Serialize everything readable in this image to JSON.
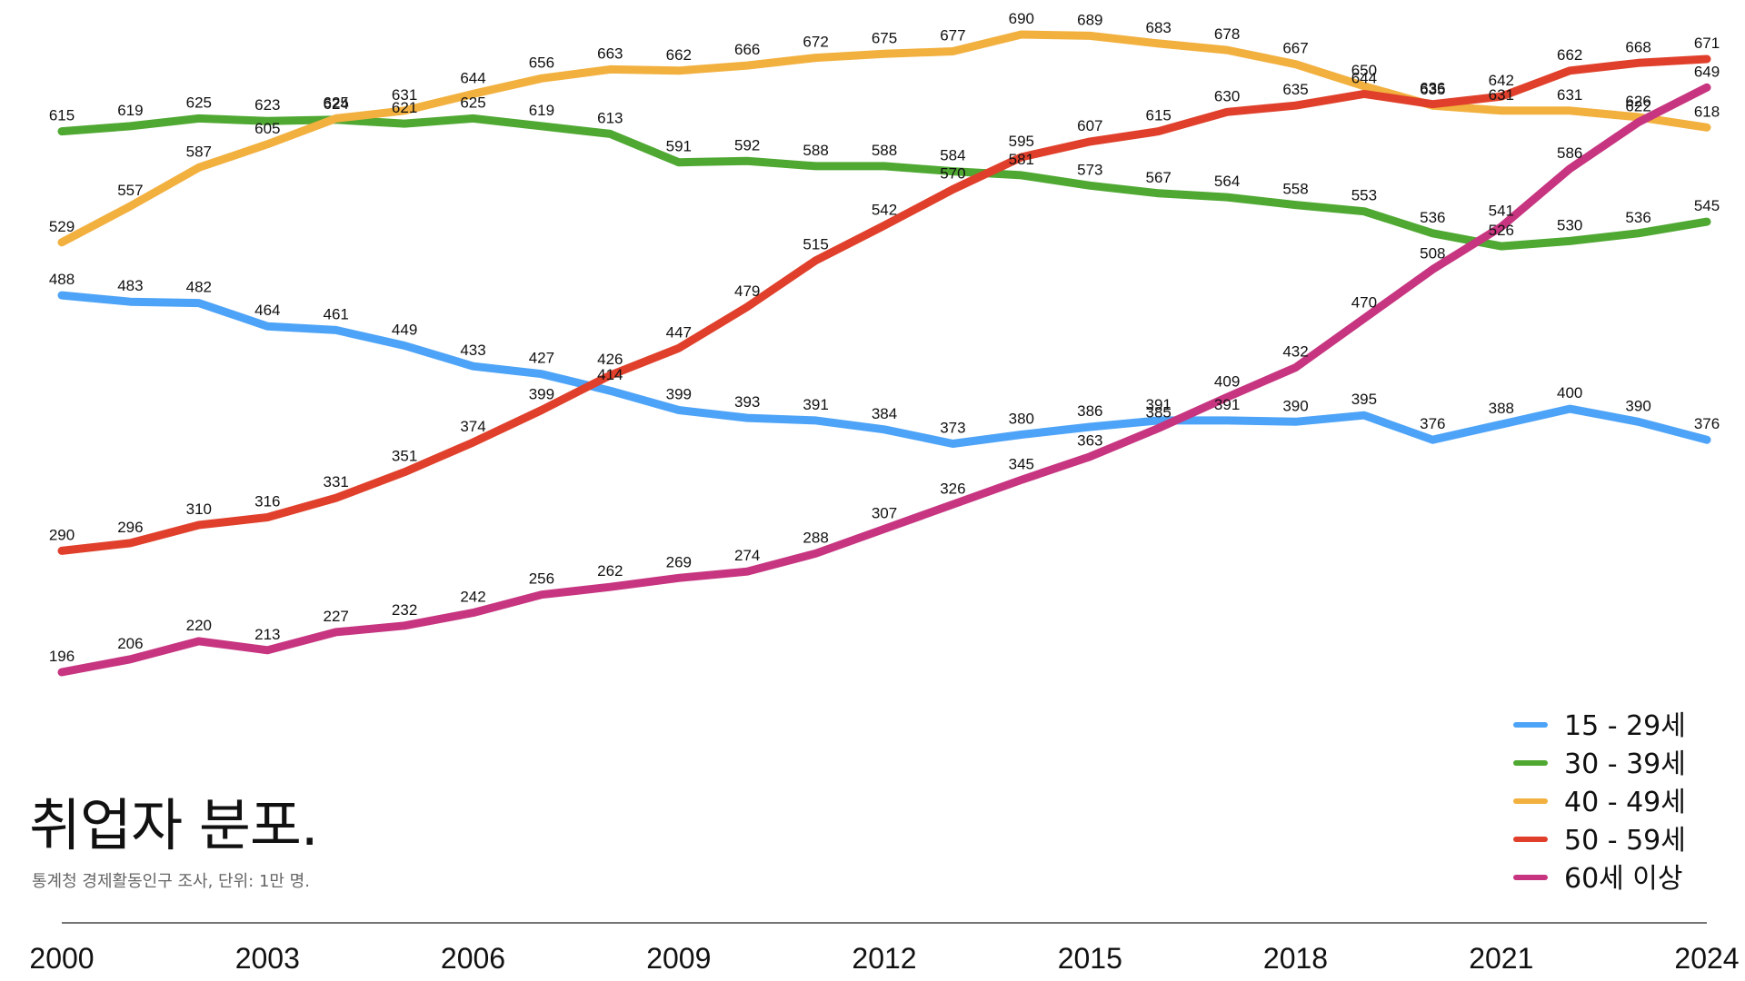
{
  "chart_data": {
    "type": "line",
    "title": "취업자 분포.",
    "subtitle": "통계청 경제활동인구 조사, 단위: 1만 명.",
    "xlabel": "",
    "ylabel": "",
    "x": [
      2000,
      2001,
      2002,
      2003,
      2004,
      2005,
      2006,
      2007,
      2008,
      2009,
      2010,
      2011,
      2012,
      2013,
      2014,
      2015,
      2016,
      2017,
      2018,
      2019,
      2020,
      2021,
      2022,
      2023,
      2024
    ],
    "x_tick_labels": [
      "2000",
      "2003",
      "2006",
      "2009",
      "2012",
      "2015",
      "2018",
      "2021",
      "2024"
    ],
    "x_tick_values": [
      2000,
      2003,
      2006,
      2009,
      2012,
      2015,
      2018,
      2021,
      2024
    ],
    "xlim": [
      2000,
      2024
    ],
    "ylim": [
      180,
      700
    ],
    "grid": false,
    "legend_position": "bottom-right",
    "series": [
      {
        "name": "15 - 29세",
        "color": "#4da3f7",
        "values": [
          488,
          483,
          482,
          464,
          461,
          449,
          433,
          427,
          414,
          399,
          393,
          391,
          384,
          373,
          380,
          386,
          391,
          391,
          390,
          395,
          376,
          388,
          400,
          390,
          376
        ]
      },
      {
        "name": "30 - 39세",
        "color": "#4fa832",
        "values": [
          615,
          619,
          625,
          623,
          624,
          621,
          625,
          619,
          613,
          591,
          592,
          588,
          588,
          584,
          581,
          573,
          567,
          564,
          558,
          553,
          536,
          526,
          530,
          536,
          545
        ]
      },
      {
        "name": "40 - 49세",
        "color": "#f2b03e",
        "values": [
          529,
          557,
          587,
          605,
          625,
          631,
          644,
          656,
          663,
          662,
          666,
          672,
          675,
          677,
          690,
          689,
          683,
          678,
          667,
          650,
          635,
          631,
          631,
          626,
          618
        ]
      },
      {
        "name": "50 - 59세",
        "color": "#e0402b",
        "values": [
          290,
          296,
          310,
          316,
          331,
          351,
          374,
          399,
          426,
          447,
          479,
          515,
          542,
          570,
          595,
          607,
          615,
          630,
          635,
          644,
          636,
          642,
          662,
          668,
          671
        ]
      },
      {
        "name": "60세 이상",
        "color": "#c73580",
        "values": [
          196,
          206,
          220,
          213,
          227,
          232,
          242,
          256,
          262,
          269,
          274,
          288,
          307,
          326,
          345,
          363,
          385,
          409,
          432,
          470,
          508,
          541,
          586,
          622,
          649
        ]
      }
    ]
  }
}
